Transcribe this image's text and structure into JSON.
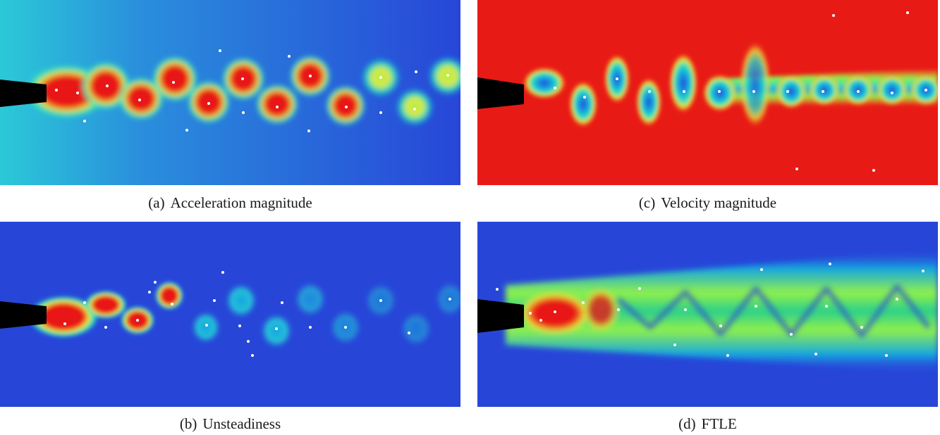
{
  "figure": {
    "panels": [
      {
        "id": "a",
        "label": "(a)",
        "caption": "Acceleration magnitude",
        "colormap": [
          "#1f3fd6",
          "#14a6e0",
          "#25e0c0",
          "#8ff04a",
          "#f0e83a",
          "#f07a1a",
          "#e81616"
        ],
        "background_color": "#2746d8",
        "wake_color": "#e81616"
      },
      {
        "id": "c",
        "label": "(c)",
        "caption": "Velocity magnitude",
        "colormap": [
          "#1f3fd6",
          "#14a6e0",
          "#25e0c0",
          "#8ff04a",
          "#f0e83a",
          "#f07a1a",
          "#e81616"
        ],
        "background_color": "#e81a16",
        "wake_color": "#2746d8"
      },
      {
        "id": "b",
        "label": "(b)",
        "caption": "Unsteadiness",
        "colormap": [
          "#1f3fd6",
          "#14a6e0",
          "#25e0c0",
          "#8ff04a",
          "#f0e83a",
          "#f07a1a",
          "#e81616"
        ],
        "background_color": "#2746d8",
        "wake_color": "#e81616"
      },
      {
        "id": "d",
        "label": "(d)",
        "caption": "FTLE",
        "colormap": [
          "#1f3fd6",
          "#14a6e0",
          "#25e0c0",
          "#8ff04a",
          "#f0e83a",
          "#f07a1a",
          "#e81616"
        ],
        "background_color": "#2746d8",
        "wake_color": "#2bd08a"
      }
    ],
    "marker_color": "#ffffff",
    "obstacle_color": "#000000"
  }
}
